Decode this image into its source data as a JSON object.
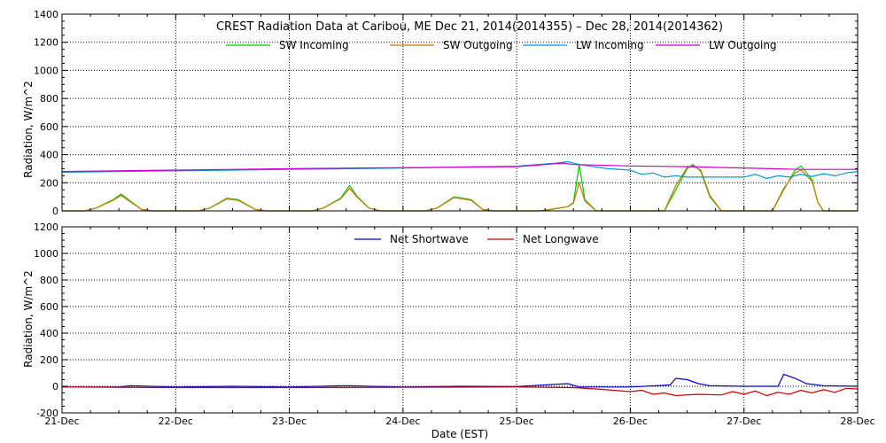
{
  "chart_data": [
    {
      "type": "line",
      "title": "CREST Radiation Data at Caribou, ME   Dec 21, 2014(2014355) – Dec 28, 2014(2014362)",
      "ylabel": "Radiation, W/m^2",
      "xlabel": "",
      "ylim": [
        0,
        1400
      ],
      "yticks": [
        0,
        200,
        400,
        600,
        800,
        1000,
        1200,
        1400
      ],
      "xlim": [
        0,
        7
      ],
      "x_ticklabels": [
        "21-Dec",
        "22-Dec",
        "23-Dec",
        "24-Dec",
        "25-Dec",
        "26-Dec",
        "27-Dec",
        "28-Dec"
      ],
      "grid": true,
      "legend": "top",
      "series": [
        {
          "name": "SW Incoming",
          "color": "#00cc00",
          "points": [
            [
              0,
              0
            ],
            [
              0.2,
              0
            ],
            [
              0.3,
              20
            ],
            [
              0.45,
              80
            ],
            [
              0.52,
              120
            ],
            [
              0.6,
              70
            ],
            [
              0.7,
              10
            ],
            [
              0.8,
              0
            ],
            [
              1.2,
              0
            ],
            [
              1.3,
              20
            ],
            [
              1.45,
              90
            ],
            [
              1.55,
              80
            ],
            [
              1.7,
              10
            ],
            [
              1.8,
              0
            ],
            [
              2.2,
              0
            ],
            [
              2.3,
              20
            ],
            [
              2.45,
              90
            ],
            [
              2.53,
              180
            ],
            [
              2.6,
              100
            ],
            [
              2.7,
              20
            ],
            [
              2.8,
              0
            ],
            [
              3.2,
              0
            ],
            [
              3.3,
              20
            ],
            [
              3.45,
              100
            ],
            [
              3.6,
              80
            ],
            [
              3.7,
              10
            ],
            [
              3.8,
              0
            ],
            [
              4.2,
              0
            ],
            [
              4.3,
              10
            ],
            [
              4.45,
              30
            ],
            [
              4.5,
              60
            ],
            [
              4.55,
              330
            ],
            [
              4.6,
              80
            ],
            [
              4.7,
              0
            ],
            [
              5.3,
              0
            ],
            [
              5.4,
              150
            ],
            [
              5.5,
              300
            ],
            [
              5.55,
              330
            ],
            [
              5.62,
              280
            ],
            [
              5.7,
              100
            ],
            [
              5.8,
              0
            ],
            [
              6.25,
              0
            ],
            [
              6.35,
              150
            ],
            [
              6.45,
              290
            ],
            [
              6.5,
              320
            ],
            [
              6.6,
              220
            ],
            [
              6.65,
              60
            ],
            [
              6.7,
              0
            ],
            [
              7,
              0
            ]
          ]
        },
        {
          "name": "SW Outgoing",
          "color": "#cc7700",
          "points": [
            [
              0,
              0
            ],
            [
              0.2,
              0
            ],
            [
              0.3,
              20
            ],
            [
              0.45,
              75
            ],
            [
              0.52,
              110
            ],
            [
              0.6,
              65
            ],
            [
              0.7,
              10
            ],
            [
              0.8,
              0
            ],
            [
              1.2,
              0
            ],
            [
              1.3,
              20
            ],
            [
              1.45,
              85
            ],
            [
              1.55,
              75
            ],
            [
              1.7,
              10
            ],
            [
              1.8,
              0
            ],
            [
              2.2,
              0
            ],
            [
              2.3,
              20
            ],
            [
              2.45,
              85
            ],
            [
              2.53,
              160
            ],
            [
              2.6,
              95
            ],
            [
              2.7,
              20
            ],
            [
              2.8,
              0
            ],
            [
              3.2,
              0
            ],
            [
              3.3,
              20
            ],
            [
              3.45,
              95
            ],
            [
              3.6,
              75
            ],
            [
              3.7,
              10
            ],
            [
              3.8,
              0
            ],
            [
              4.2,
              0
            ],
            [
              4.3,
              10
            ],
            [
              4.45,
              30
            ],
            [
              4.5,
              55
            ],
            [
              4.55,
              200
            ],
            [
              4.6,
              70
            ],
            [
              4.7,
              0
            ],
            [
              5.3,
              0
            ],
            [
              5.4,
              180
            ],
            [
              5.5,
              310
            ],
            [
              5.55,
              320
            ],
            [
              5.62,
              290
            ],
            [
              5.7,
              110
            ],
            [
              5.8,
              0
            ],
            [
              6.25,
              0
            ],
            [
              6.35,
              160
            ],
            [
              6.45,
              270
            ],
            [
              6.5,
              290
            ],
            [
              6.6,
              210
            ],
            [
              6.65,
              60
            ],
            [
              6.7,
              0
            ],
            [
              7,
              0
            ]
          ]
        },
        {
          "name": "LW Incoming",
          "color": "#0099dd",
          "points": [
            [
              0,
              275
            ],
            [
              1,
              285
            ],
            [
              2,
              295
            ],
            [
              3,
              305
            ],
            [
              4,
              318
            ],
            [
              4.35,
              340
            ],
            [
              4.45,
              350
            ],
            [
              4.55,
              330
            ],
            [
              4.8,
              300
            ],
            [
              5.0,
              290
            ],
            [
              5.1,
              260
            ],
            [
              5.2,
              270
            ],
            [
              5.3,
              240
            ],
            [
              5.4,
              250
            ],
            [
              5.5,
              240
            ],
            [
              6.0,
              240
            ],
            [
              6.1,
              260
            ],
            [
              6.2,
              230
            ],
            [
              6.3,
              250
            ],
            [
              6.4,
              240
            ],
            [
              6.5,
              260
            ],
            [
              6.6,
              245
            ],
            [
              6.7,
              265
            ],
            [
              6.8,
              250
            ],
            [
              6.9,
              270
            ],
            [
              7,
              280
            ]
          ]
        },
        {
          "name": "LW Outgoing",
          "color": "#cc00cc",
          "points": [
            [
              0,
              280
            ],
            [
              1,
              290
            ],
            [
              2,
              300
            ],
            [
              3,
              308
            ],
            [
              4,
              315
            ],
            [
              4.4,
              340
            ],
            [
              4.5,
              330
            ],
            [
              5,
              320
            ],
            [
              5.5,
              315
            ],
            [
              6,
              305
            ],
            [
              6.5,
              295
            ],
            [
              7,
              295
            ]
          ]
        }
      ]
    },
    {
      "type": "line",
      "title": "",
      "ylabel": "Radiation, W/m^2",
      "xlabel": "Date (EST)",
      "ylim": [
        -200,
        1200
      ],
      "yticks": [
        -200,
        0,
        200,
        400,
        600,
        800,
        1000,
        1200
      ],
      "xlim": [
        0,
        7
      ],
      "x_ticklabels": [
        "21-Dec",
        "22-Dec",
        "23-Dec",
        "24-Dec",
        "25-Dec",
        "26-Dec",
        "27-Dec",
        "28-Dec"
      ],
      "grid": true,
      "legend": "top",
      "series": [
        {
          "name": "Net Shortwave",
          "color": "#0000cc",
          "points": [
            [
              0,
              -5
            ],
            [
              0.5,
              -5
            ],
            [
              0.6,
              5
            ],
            [
              1,
              -5
            ],
            [
              1.5,
              0
            ],
            [
              2,
              -5
            ],
            [
              2.5,
              5
            ],
            [
              3,
              -5
            ],
            [
              3.5,
              0
            ],
            [
              4,
              -2
            ],
            [
              4.45,
              20
            ],
            [
              4.55,
              -5
            ],
            [
              5,
              -5
            ],
            [
              5.35,
              10
            ],
            [
              5.4,
              60
            ],
            [
              5.5,
              50
            ],
            [
              5.6,
              20
            ],
            [
              5.7,
              5
            ],
            [
              6,
              0
            ],
            [
              6.3,
              0
            ],
            [
              6.35,
              90
            ],
            [
              6.45,
              60
            ],
            [
              6.55,
              20
            ],
            [
              6.7,
              5
            ],
            [
              7,
              0
            ]
          ]
        },
        {
          "name": "Net Longwave",
          "color": "#cc0000",
          "points": [
            [
              0,
              -5
            ],
            [
              1,
              -10
            ],
            [
              2,
              -10
            ],
            [
              3,
              -8
            ],
            [
              4,
              -5
            ],
            [
              4.5,
              -10
            ],
            [
              4.7,
              -20
            ],
            [
              5,
              -40
            ],
            [
              5.1,
              -30
            ],
            [
              5.2,
              -60
            ],
            [
              5.3,
              -50
            ],
            [
              5.4,
              -70
            ],
            [
              5.6,
              -60
            ],
            [
              5.8,
              -65
            ],
            [
              5.9,
              -40
            ],
            [
              6.0,
              -60
            ],
            [
              6.1,
              -35
            ],
            [
              6.2,
              -70
            ],
            [
              6.3,
              -45
            ],
            [
              6.4,
              -60
            ],
            [
              6.5,
              -30
            ],
            [
              6.6,
              -50
            ],
            [
              6.7,
              -25
            ],
            [
              6.8,
              -45
            ],
            [
              6.9,
              -15
            ],
            [
              7,
              -20
            ]
          ]
        }
      ]
    }
  ]
}
